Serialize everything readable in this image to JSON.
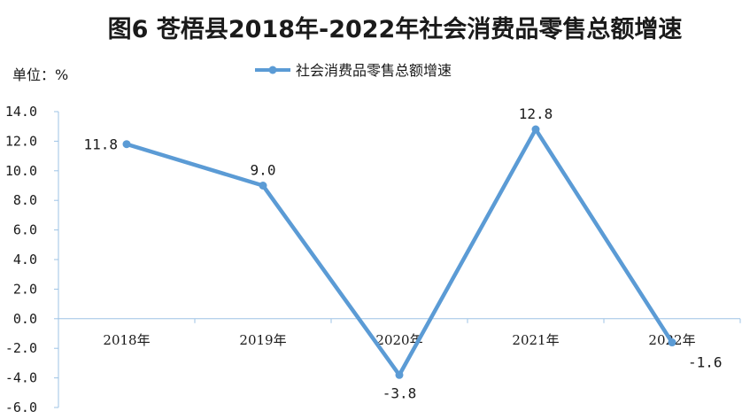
{
  "chart_data": {
    "type": "line",
    "title": "图6  苍梧县2018年-2022年社会消费品零售总额增速",
    "unit_label": "单位：%",
    "categories": [
      "2018年",
      "2019年",
      "2020年",
      "2021年",
      "2022年"
    ],
    "series": [
      {
        "name": "社会消费品零售总额增速",
        "values": [
          11.8,
          9.0,
          -3.8,
          12.8,
          -1.6
        ],
        "value_labels": [
          "11.8",
          "9.0",
          "-3.8",
          "12.8",
          "-1.6"
        ],
        "color": "#5b9bd5"
      }
    ],
    "y_ticks": [
      "14.0",
      "12.0",
      "10.0",
      "8.0",
      "6.0",
      "4.0",
      "2.0",
      "0.0",
      "-2.0",
      "-4.0",
      "-6.0"
    ],
    "ylim": [
      -6,
      14
    ],
    "y_step": 2,
    "legend_position": "top-center",
    "grid": false
  }
}
